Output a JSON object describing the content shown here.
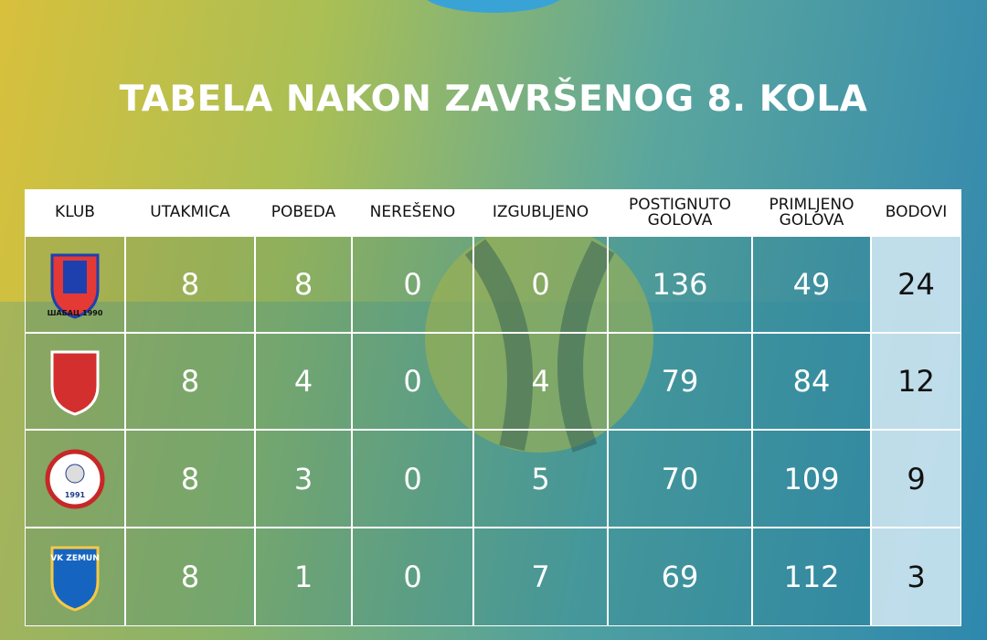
{
  "title": "TABELA NAKON ZAVRŠENOG 8. KOLA",
  "table": {
    "headers": [
      "KLUB",
      "UTAKMICA",
      "POBEDA",
      "NEREŠENO",
      "IZGUBLJENO",
      "POSTIGNUTO GOLOVA",
      "PRIMLJENO GOLOVA",
      "BODOVI"
    ],
    "rows": [
      {
        "logo_text": "ШАБАЦ 1990",
        "cells": [
          8,
          8,
          0,
          0,
          136,
          49,
          24
        ]
      },
      {
        "cells": [
          8,
          4,
          0,
          4,
          79,
          84,
          12
        ]
      },
      {
        "logo_text": "1991",
        "cells": [
          8,
          3,
          0,
          5,
          70,
          109,
          9
        ]
      },
      {
        "logo_text": "VK ZEMUN",
        "cells": [
          8,
          1,
          0,
          7,
          69,
          112,
          3
        ]
      }
    ]
  }
}
